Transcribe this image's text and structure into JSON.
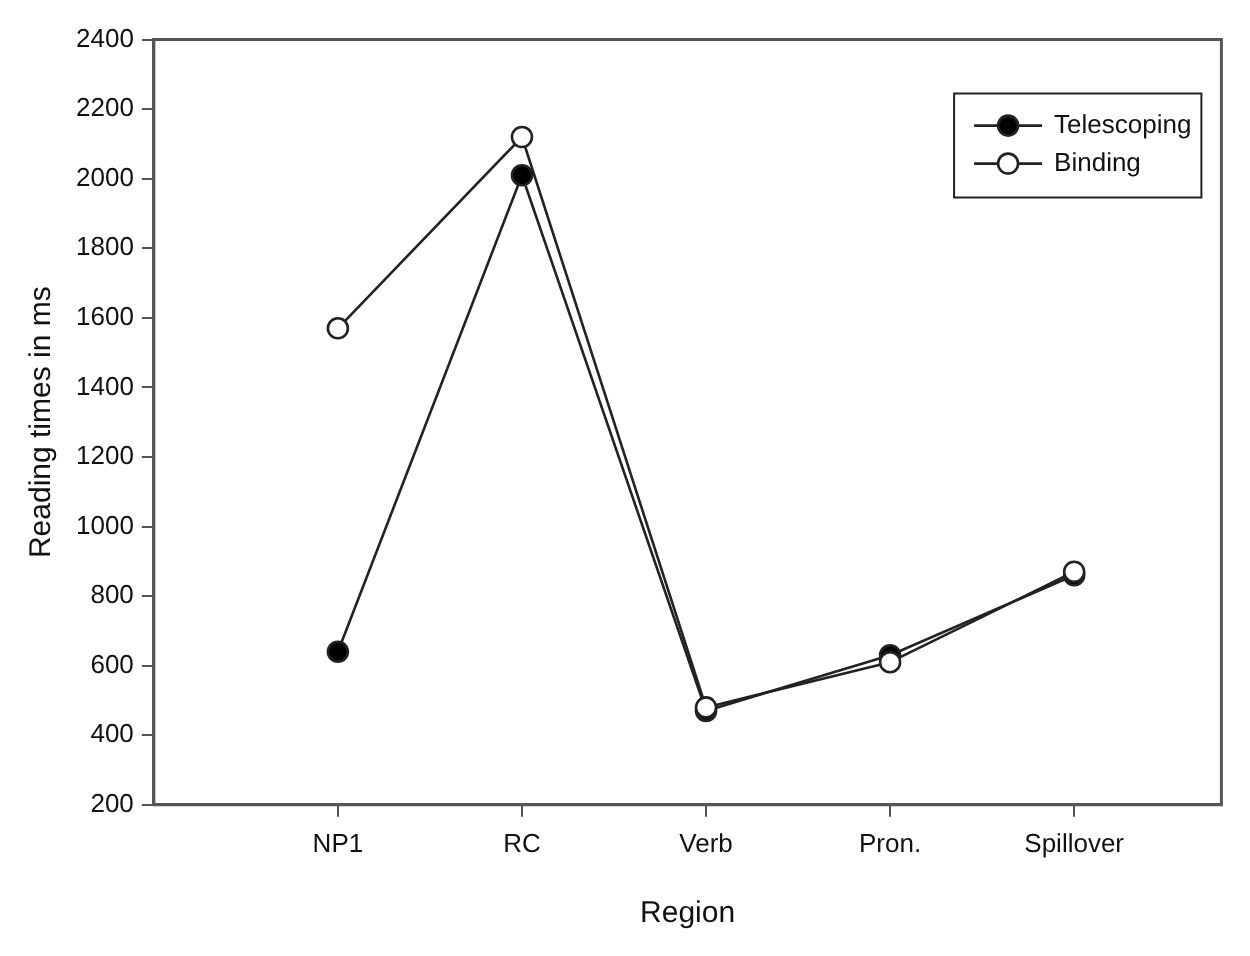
{
  "chart_data": {
    "type": "line",
    "xlabel": "Region",
    "ylabel": "Reading times in ms",
    "categories": [
      "NP1",
      "RC",
      "Verb",
      "Pron.",
      "Spillover"
    ],
    "series": [
      {
        "name": "Telescoping",
        "color": "#000000",
        "values": [
          640,
          2010,
          470,
          630,
          860
        ]
      },
      {
        "name": "Binding",
        "color": "#ffffff",
        "values": [
          1570,
          2120,
          480,
          610,
          870
        ]
      }
    ],
    "ylim": [
      200,
      2400
    ],
    "yticks": [
      200,
      400,
      600,
      800,
      1000,
      1200,
      1400,
      1600,
      1800,
      2000,
      2200,
      2400
    ],
    "grid": false,
    "legend": "top right",
    "marker": "circle",
    "line_style": "solid"
  }
}
